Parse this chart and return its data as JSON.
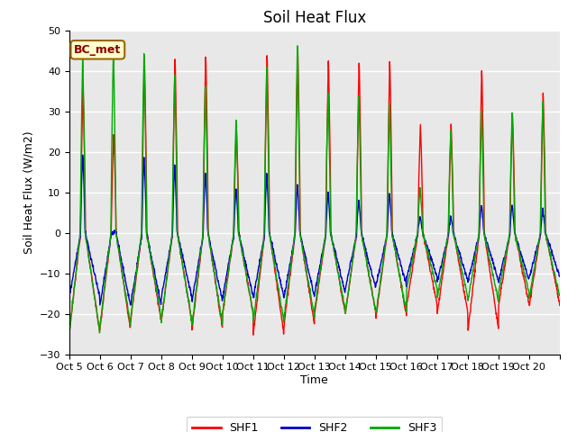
{
  "title": "Soil Heat Flux",
  "ylabel": "Soil Heat Flux (W/m2)",
  "xlabel": "Time",
  "ylim": [
    -30,
    50
  ],
  "yticks": [
    -30,
    -20,
    -10,
    0,
    10,
    20,
    30,
    40,
    50
  ],
  "xtick_labels": [
    "Oct 5",
    "Oct 6",
    "Oct 7",
    "Oct 8",
    "Oct 9",
    "Oct 10",
    "Oct 11",
    "Oct 12",
    "Oct 13",
    "Oct 14",
    "Oct 15",
    "Oct 16",
    "Oct 17",
    "Oct 18",
    "Oct 19",
    "Oct 20"
  ],
  "line_colors": {
    "SHF1": "#FF0000",
    "SHF2": "#0000CC",
    "SHF3": "#00AA00"
  },
  "line_width": 1.0,
  "bg_color": "#E8E8E8",
  "annotation_text": "BC_met",
  "annotation_bg": "#FFFFCC",
  "annotation_border": "#996600",
  "title_fontsize": 12,
  "label_fontsize": 9,
  "tick_fontsize": 8,
  "shf1_peaks": [
    37,
    25,
    44,
    44,
    45,
    27,
    45,
    47,
    43,
    43,
    43,
    27,
    27,
    41,
    30,
    35
  ],
  "shf2_peaks": [
    20,
    0,
    19,
    17,
    15,
    11,
    15,
    12,
    10,
    8,
    10,
    4,
    4,
    7,
    7,
    6
  ],
  "shf3_peaks": [
    44,
    46,
    45,
    40,
    37,
    28,
    41,
    47,
    35,
    34,
    33,
    11,
    26,
    30,
    30,
    33
  ],
  "night_trough_shf1": [
    -25,
    -24,
    -22,
    -22,
    -24,
    -20,
    -25,
    -23,
    -20,
    -20,
    -21,
    -18,
    -20,
    -24,
    -18,
    -18
  ],
  "night_trough_shf2": [
    -16,
    -18,
    -18,
    -16,
    -17,
    -16,
    -16,
    -16,
    -15,
    -14,
    -13,
    -11,
    -12,
    -12,
    -12,
    -11
  ],
  "night_trough_shf3": [
    -25,
    -23,
    -21,
    -22,
    -23,
    -20,
    -22,
    -21,
    -19,
    -20,
    -20,
    -14,
    -16,
    -17,
    -15,
    -16
  ]
}
